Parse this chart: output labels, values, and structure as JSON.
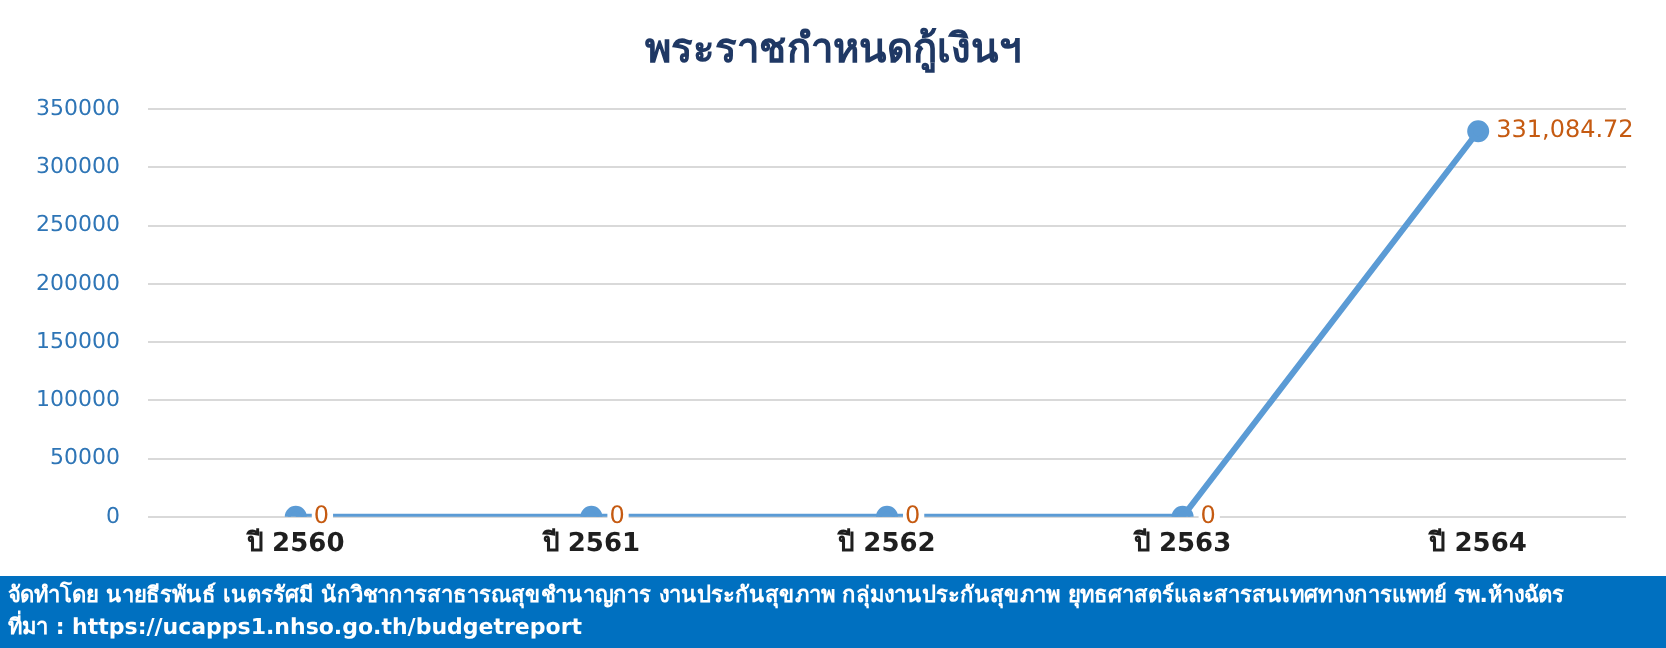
{
  "chart_data": {
    "type": "line",
    "title": "พระราชกำหนดกู้เงินฯ",
    "categories": [
      "ปี 2560",
      "ปี 2561",
      "ปี 2562",
      "ปี 2563",
      "ปี 2564"
    ],
    "values": [
      0,
      0,
      0,
      0,
      331084.72
    ],
    "value_labels": [
      "0",
      "0",
      "0",
      "0",
      "331,084.72"
    ],
    "color": "#5b9bd5",
    "ylim": [
      0,
      350000
    ],
    "yticks": [
      0,
      50000,
      100000,
      150000,
      200000,
      250000,
      300000,
      350000
    ],
    "grid": "y",
    "legend": false,
    "marker": "circle",
    "line_style": "solid",
    "annotations": [
      "จัดทำโดย นายธีรพันธ์ เนตรรัศมี นักวิชาการสาธารณสุขชำนาญการ งานประกันสุขภาพ กลุ่มงานประกันสุขภาพ ยุทธศาสตร์และสารสนเทศทางการแพทย์ รพ.ห้างฉัตร",
      "ที่มา : https://ucapps1.nhso.go.th/budgetreport"
    ]
  }
}
